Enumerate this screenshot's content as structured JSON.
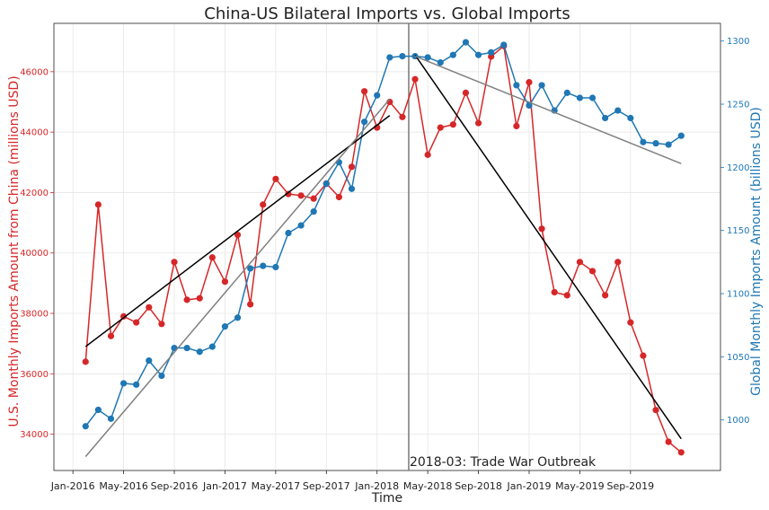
{
  "chart_data": {
    "type": "line",
    "title": "China-US Bilateral Imports vs. Global Imports",
    "xlabel": "Time",
    "ylabel_left": "U.S. Monthly Imports Amount from China (millions USD)",
    "ylabel_right": "Global Monthly Imports Amount (billions USD)",
    "x_ticks": [
      "Jan-2016",
      "May-2016",
      "Sep-2016",
      "Jan-2017",
      "May-2017",
      "Sep-2017",
      "Jan-2018",
      "May-2018",
      "Sep-2018",
      "Jan-2019",
      "May-2019",
      "Sep-2019"
    ],
    "y_left_ticks": [
      34000,
      36000,
      38000,
      40000,
      42000,
      44000,
      46000
    ],
    "y_right_ticks": [
      1000,
      1050,
      1100,
      1150,
      1200,
      1250,
      1300
    ],
    "y_left_range": [
      32800,
      47600
    ],
    "y_right_range": [
      960,
      1314
    ],
    "x_range_months": [
      -1.5,
      51.1
    ],
    "grid": true,
    "annotation": {
      "text": "2018-03: Trade War Outbreak",
      "x_month": 26.5
    },
    "colors": {
      "china": "#d62728",
      "global": "#1f77b4",
      "trend_china": "#000000",
      "trend_global": "#808080",
      "vline": "#808080"
    },
    "x": [
      "2016-02",
      "2016-03",
      "2016-04",
      "2016-05",
      "2016-06",
      "2016-07",
      "2016-08",
      "2016-09",
      "2016-10",
      "2016-11",
      "2016-12",
      "2017-01",
      "2017-02",
      "2017-03",
      "2017-04",
      "2017-05",
      "2017-06",
      "2017-07",
      "2017-08",
      "2017-09",
      "2017-10",
      "2017-11",
      "2017-12",
      "2018-01",
      "2018-02",
      "2018-03",
      "2018-04",
      "2018-05",
      "2018-06",
      "2018-07",
      "2018-08",
      "2018-09",
      "2018-10",
      "2018-11",
      "2018-12",
      "2019-01",
      "2019-02",
      "2019-03",
      "2019-04",
      "2019-05",
      "2019-06",
      "2019-07",
      "2019-08",
      "2019-09",
      "2019-10",
      "2019-11",
      "2019-12",
      "2020-01"
    ],
    "series": [
      {
        "axis": "left",
        "values": [
          36400,
          41600,
          37250,
          37900,
          37700,
          38200,
          37650,
          39700,
          38450,
          38500,
          39850,
          39050,
          40600,
          38300,
          41600,
          42450,
          41950,
          41900,
          41800,
          42300,
          41850,
          42850,
          45350,
          44150,
          45000,
          44500,
          45750,
          43250,
          44150,
          44250,
          45300,
          44300,
          46500,
          46850,
          44200,
          45650,
          40800,
          38700,
          38600,
          39700,
          39400,
          38600,
          39700,
          37700,
          36600,
          34800,
          33750,
          33400
        ]
      },
      {
        "axis": "right",
        "values": [
          995,
          1008,
          1001,
          1029,
          1028,
          1047,
          1035,
          1057,
          1057,
          1054,
          1058,
          1074,
          1081,
          1120,
          1122,
          1121,
          1148,
          1154,
          1165,
          1187,
          1204,
          1183,
          1236,
          1257,
          1287,
          1288,
          1288,
          1287,
          1283,
          1289,
          1299,
          1289,
          1291,
          1297,
          1265,
          1249,
          1265,
          1245,
          1259,
          1255,
          1255,
          1239,
          1245,
          1239,
          1220,
          1219,
          1218,
          1225
        ]
      }
    ],
    "trend_lines": [
      {
        "axis": "left",
        "x": [
          "2016-02",
          "2018-02"
        ],
        "y": [
          36900,
          44550
        ],
        "color": "#000000"
      },
      {
        "axis": "left",
        "x": [
          "2018-04",
          "2020-01"
        ],
        "y": [
          46550,
          33850
        ],
        "color": "#000000"
      },
      {
        "axis": "right",
        "x": [
          "2016-02",
          "2018-02"
        ],
        "y": [
          971,
          1254
        ],
        "color": "#808080"
      },
      {
        "axis": "right",
        "x": [
          "2018-04",
          "2020-01"
        ],
        "y": [
          1288,
          1203
        ],
        "color": "#808080"
      }
    ]
  }
}
